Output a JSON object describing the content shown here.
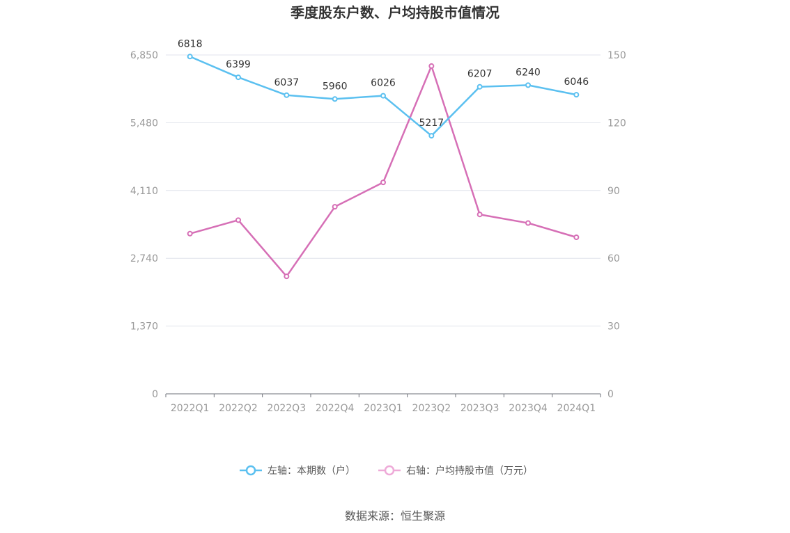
{
  "chart_data": {
    "type": "line",
    "title": "季度股东户数、户均持股市值情况",
    "categories": [
      "2022Q1",
      "2022Q2",
      "2022Q3",
      "2022Q4",
      "2023Q1",
      "2023Q2",
      "2023Q3",
      "2023Q4",
      "2024Q1"
    ],
    "left_axis": {
      "ticks": [
        "0",
        "1,370",
        "2,740",
        "4,110",
        "5,480",
        "6,850"
      ],
      "ylim": [
        0,
        6850
      ]
    },
    "right_axis": {
      "ticks": [
        "0",
        "30",
        "60",
        "90",
        "120",
        "150"
      ],
      "ylim": [
        0,
        150
      ]
    },
    "grid": true,
    "series": [
      {
        "name": "左轴：本期数（户）",
        "axis": "left",
        "color": "#5bc0f0",
        "values": [
          6818,
          6399,
          6037,
          5960,
          6026,
          5217,
          6207,
          6240,
          6046
        ],
        "data_labels": [
          "6818",
          "6399",
          "6037",
          "5960",
          "6026",
          "5217",
          "6207",
          "6240",
          "6046"
        ]
      },
      {
        "name": "右轴：户均持股市值（万元）",
        "axis": "right",
        "color": "#d66fb6",
        "values": [
          70.9,
          76.9,
          52.0,
          82.8,
          93.6,
          145.1,
          79.4,
          75.6,
          69.3
        ]
      }
    ],
    "legend_position": "bottom"
  },
  "source": "数据来源：恒生聚源"
}
